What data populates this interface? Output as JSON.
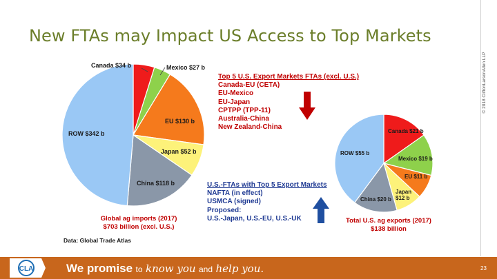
{
  "slide": {
    "title": "New FTAs may Impact US Access to Top Markets",
    "copyright": "© 2018 CliftonLarsonAllen LLP",
    "page_number": "23",
    "source": "Data: Global Trade Atlas"
  },
  "left_pie": {
    "labels": {
      "canada": "Canada $34 b",
      "mexico": "Mexico $27 b",
      "eu": "EU $130 b",
      "japan": "Japan $52 b",
      "china": "China $118 b",
      "row": "ROW $342 b"
    },
    "caption_line1": "Global ag imports (2017)",
    "caption_line2": "$703 billion (excl. U.S.)"
  },
  "right_pie": {
    "labels": {
      "canada": "Canada $21 b",
      "mexico": "Mexico $19 b",
      "eu": "EU $11 b",
      "japan_line1": "Japan",
      "japan_line2": "$12 b",
      "china": "China $20 b",
      "row": "ROW $55 b"
    },
    "caption_line1": "Total U.S. ag exports (2017)",
    "caption_line2": "$138 billion"
  },
  "fta_top5": {
    "heading": "Top 5 U.S. Export Markets FTAs (excl. U.S.)",
    "items": [
      "Canada-EU (CETA)",
      "EU-Mexico",
      "EU-Japan",
      "CPTPP (TPP-11)",
      "Australia-China",
      "New Zealand-China"
    ]
  },
  "us_ftas": {
    "heading": "U.S.-FTAs with Top 5 Export Markets",
    "items": [
      "NAFTA (in effect)",
      "USMCA (signed)",
      "Proposed:",
      "U.S.-Japan, U.S.-EU, U.S.-UK"
    ]
  },
  "footer": {
    "logo_text": "CLA",
    "tagline_part1": "We promise",
    "tagline_part2": "to",
    "tagline_part3": "know you",
    "tagline_part4": "and",
    "tagline_part5": "help you."
  },
  "colors": {
    "title_green": "#6b7e2a",
    "footer_orange": "#c8661c",
    "red": "#c00000",
    "blue": "#1f3a93",
    "slice_canada": "#ef1b1b",
    "slice_mexico": "#8ed14b",
    "slice_eu": "#f57a1c",
    "slice_japan": "#fdf27a",
    "slice_china": "#8a97a8",
    "slice_row": "#9ac8f5"
  },
  "chart_data": [
    {
      "type": "pie",
      "title": "",
      "categories": [
        "Canada",
        "Mexico",
        "EU",
        "Japan",
        "China",
        "ROW"
      ],
      "values": [
        34,
        27,
        130,
        52,
        118,
        342
      ],
      "unit": "$ billion"
    },
    {
      "type": "pie",
      "title": "",
      "categories": [
        "Canada",
        "Mexico",
        "EU",
        "Japan",
        "China",
        "ROW"
      ],
      "values": [
        21,
        19,
        11,
        12,
        20,
        55
      ],
      "unit": "$ billion"
    }
  ]
}
